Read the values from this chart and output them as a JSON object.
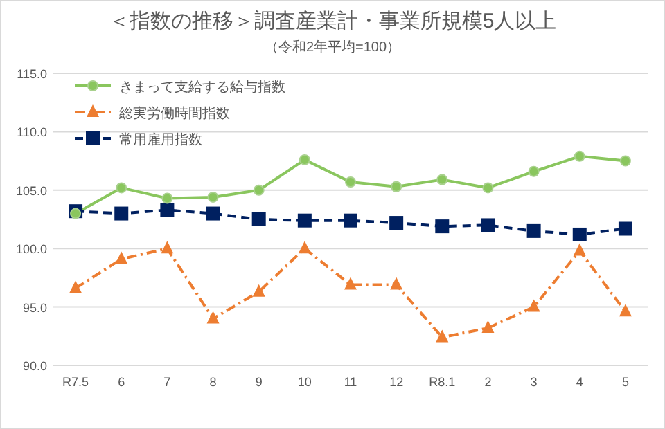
{
  "chart_data": {
    "type": "line",
    "title": "＜指数の推移＞調査産業計・事業所規模5人以上",
    "subtitle": "（令和2年平均=100）",
    "categories": [
      "R7.5",
      "6",
      "7",
      "8",
      "9",
      "10",
      "11",
      "12",
      "R8.1",
      "2",
      "3",
      "4",
      "5"
    ],
    "series": [
      {
        "name": "きまって支給する給与指数",
        "color": "#8ac65e",
        "marker": "circle",
        "line_style": "solid",
        "values": [
          103.0,
          105.2,
          104.3,
          104.4,
          105.0,
          107.6,
          105.7,
          105.3,
          105.9,
          105.2,
          106.6,
          107.9,
          107.5
        ]
      },
      {
        "name": "総実労働時間指数",
        "color": "#ed7d31",
        "marker": "triangle",
        "line_style": "dashdot",
        "values": [
          96.6,
          99.1,
          100.0,
          94.0,
          96.3,
          100.0,
          96.9,
          96.9,
          92.4,
          93.2,
          95.0,
          99.8,
          94.6
        ]
      },
      {
        "name": "常用雇用指数",
        "color": "#002060",
        "marker": "square",
        "line_style": "dashed",
        "values": [
          103.2,
          103.0,
          103.3,
          103.0,
          102.5,
          102.4,
          102.4,
          102.2,
          101.9,
          102.0,
          101.5,
          101.2,
          101.7
        ]
      }
    ],
    "ylim": [
      90,
      115
    ],
    "yticks": [
      {
        "value": 90,
        "label": "90.0"
      },
      {
        "value": 95,
        "label": "95.0"
      },
      {
        "value": 100,
        "label": "100.0"
      },
      {
        "value": 105,
        "label": "105.0"
      },
      {
        "value": 110,
        "label": "110.0"
      },
      {
        "value": 115,
        "label": "115.0"
      }
    ],
    "grid": "y",
    "legend": "top left"
  }
}
